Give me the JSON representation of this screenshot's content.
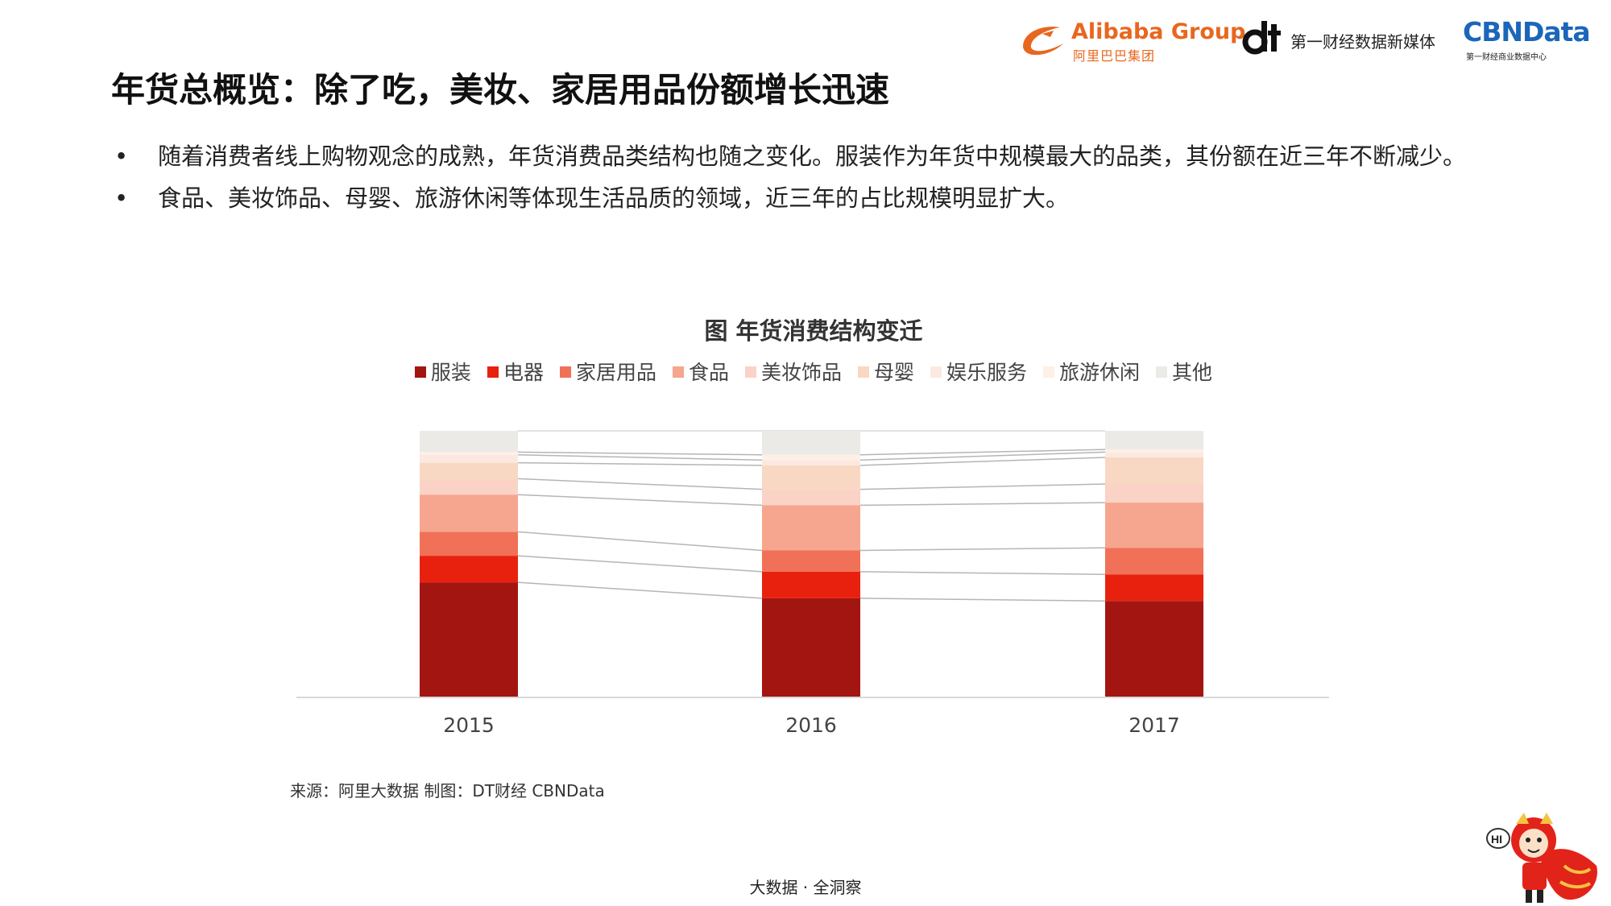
{
  "header": {
    "alibaba": {
      "word": "Alibaba Group",
      "cn": "阿里巴巴集团"
    },
    "dt": {
      "text": "第一财经数据新媒体"
    },
    "cbn": {
      "word": "CBNData",
      "sub": "第一财经商业数据中心"
    }
  },
  "page": {
    "title": "年货总概览：除了吃，美妆、家居用品份额增长迅速",
    "bullets": [
      "随着消费者线上购物观念的成熟，年货消费品类结构也随之变化。服装作为年货中规模最大的品类，其份额在近三年不断减少。",
      "食品、美妆饰品、母婴、旅游休闲等体现生活品质的领域，近三年的占比规模明显扩大。"
    ],
    "bullet_symbol": "•"
  },
  "chart_data": {
    "type": "bar",
    "stacked": true,
    "normalized": true,
    "title": "图 年货消费结构变迁",
    "categories": [
      "2015",
      "2016",
      "2017"
    ],
    "ylim": [
      0,
      100
    ],
    "xlabel": "",
    "ylabel": "",
    "series": [
      {
        "name": "服装",
        "color": "#a31510",
        "values": [
          43,
          37,
          36
        ]
      },
      {
        "name": "电器",
        "color": "#e8210f",
        "values": [
          10,
          10,
          10
        ]
      },
      {
        "name": "家居用品",
        "color": "#f07157",
        "values": [
          9,
          8,
          10
        ]
      },
      {
        "name": "食品",
        "color": "#f6a58e",
        "values": [
          14,
          17,
          17
        ]
      },
      {
        "name": "美妆饰品",
        "color": "#fad2c6",
        "values": [
          6,
          6,
          7
        ]
      },
      {
        "name": "母婴",
        "color": "#f8d8c3",
        "values": [
          6,
          9,
          10
        ]
      },
      {
        "name": "娱乐服务",
        "color": "#fbe9e1",
        "values": [
          3,
          2,
          2
        ]
      },
      {
        "name": "旅游休闲",
        "color": "#fdf0e5",
        "values": [
          1,
          2,
          1
        ]
      },
      {
        "name": "其他",
        "color": "#ebeae6",
        "values": [
          8,
          9,
          7
        ]
      }
    ],
    "connector_color": "#b5b5b5",
    "axis_color": "#d9d9d9"
  },
  "source": "来源：阿里大数据   制图：DT财经    CBNData",
  "footer": "大数据 · 全洞察",
  "mascot": {
    "greeting": "HI"
  }
}
